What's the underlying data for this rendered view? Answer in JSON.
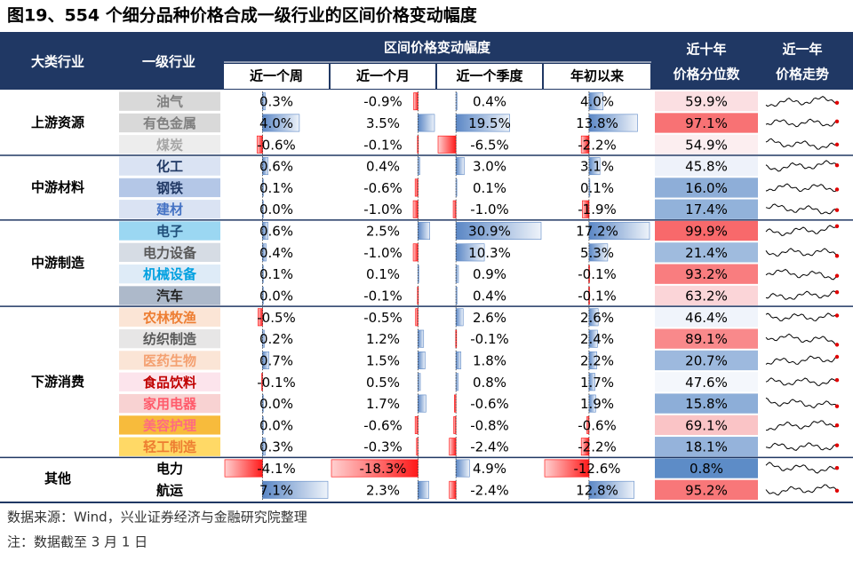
{
  "title": "图19、554 个细分品种价格合成一级行业的区间价格变动幅度",
  "header": {
    "group": "大类行业",
    "industry": "一级行业",
    "change": "区间价格变动幅度",
    "periods": [
      "近一个周",
      "近一个月",
      "近一个季度",
      "年初以来"
    ],
    "percentile": [
      "近十年",
      "价格分位数"
    ],
    "trend": [
      "近一年",
      "价格走势"
    ]
  },
  "groups": [
    {
      "name": "上游资源",
      "rows": [
        {
          "name": "油气",
          "bg": "#d9d9d9",
          "color": "#7f7f7f",
          "values": [
            "0.3%",
            "-0.9%",
            "0.4%",
            "4.0%",
            "59.9%"
          ]
        },
        {
          "name": "有色金属",
          "bg": "#d9d9d9",
          "color": "#7f7f7f",
          "values": [
            "4.0%",
            "3.5%",
            "19.5%",
            "13.8%",
            "97.1%"
          ]
        },
        {
          "name": "煤炭",
          "bg": "#ededed",
          "color": "#a6a6a6",
          "values": [
            "-0.6%",
            "-0.1%",
            "-6.5%",
            "-2.2%",
            "54.9%"
          ]
        }
      ]
    },
    {
      "name": "中游材料",
      "rows": [
        {
          "name": "化工",
          "bg": "#dae3f3",
          "color": "#1f3864",
          "values": [
            "0.6%",
            "0.4%",
            "3.0%",
            "3.1%",
            "45.8%"
          ]
        },
        {
          "name": "钢铁",
          "bg": "#b4c7e7",
          "color": "#203864",
          "values": [
            "0.1%",
            "-0.6%",
            "0.1%",
            "0.1%",
            "16.0%"
          ]
        },
        {
          "name": "建材",
          "bg": "#dae3f3",
          "color": "#4472c4",
          "values": [
            "0.0%",
            "-1.0%",
            "-1.0%",
            "-1.9%",
            "17.4%"
          ]
        }
      ]
    },
    {
      "name": "中游制造",
      "rows": [
        {
          "name": "电子",
          "bg": "#9bd7f2",
          "color": "#1f4e79",
          "values": [
            "0.6%",
            "2.5%",
            "30.9%",
            "17.2%",
            "99.9%"
          ]
        },
        {
          "name": "电力设备",
          "bg": "#d6dce4",
          "color": "#595959",
          "values": [
            "0.4%",
            "-1.0%",
            "10.3%",
            "5.3%",
            "21.4%"
          ]
        },
        {
          "name": "机械设备",
          "bg": "#deebf7",
          "color": "#00a0e0",
          "values": [
            "0.1%",
            "0.1%",
            "0.9%",
            "-0.1%",
            "93.2%"
          ]
        },
        {
          "name": "汽车",
          "bg": "#adb9ca",
          "color": "#222222",
          "values": [
            "0.0%",
            "-0.1%",
            "0.4%",
            "-0.1%",
            "63.2%"
          ]
        }
      ]
    },
    {
      "name": "下游消费",
      "rows": [
        {
          "name": "农林牧渔",
          "bg": "#fbe5d6",
          "color": "#ed7d31",
          "values": [
            "-0.5%",
            "-0.5%",
            "2.6%",
            "2.6%",
            "46.4%"
          ]
        },
        {
          "name": "纺织制造",
          "bg": "#e7e6e6",
          "color": "#595959",
          "values": [
            "0.2%",
            "1.2%",
            "-0.1%",
            "2.4%",
            "89.1%"
          ]
        },
        {
          "name": "医药生物",
          "bg": "#fbe5d6",
          "color": "#f4a070",
          "values": [
            "0.7%",
            "1.5%",
            "1.8%",
            "2.2%",
            "20.7%"
          ]
        },
        {
          "name": "食品饮料",
          "bg": "#fce4ec",
          "color": "#c00000",
          "values": [
            "-0.1%",
            "0.5%",
            "0.8%",
            "1.7%",
            "47.6%"
          ]
        },
        {
          "name": "家用电器",
          "bg": "#f8d2d2",
          "color": "#ff5b6b",
          "values": [
            "0.0%",
            "1.7%",
            "-0.6%",
            "1.9%",
            "15.8%"
          ]
        },
        {
          "name": "美容护理",
          "bg": "#f7bb3c",
          "color": "#ff6b80",
          "values": [
            "0.0%",
            "-0.6%",
            "-0.8%",
            "-0.6%",
            "69.1%"
          ]
        },
        {
          "name": "轻工制造",
          "bg": "#ffd966",
          "color": "#ed7d31",
          "values": [
            "0.3%",
            "-0.3%",
            "-2.4%",
            "-2.2%",
            "18.1%"
          ]
        }
      ]
    },
    {
      "name": "其他",
      "rows": [
        {
          "name": "电力",
          "bg": "#ffffff",
          "color": "#000000",
          "values": [
            "-4.1%",
            "-18.3%",
            "4.9%",
            "-12.6%",
            "0.8%"
          ]
        },
        {
          "name": "航运",
          "bg": "#ffffff",
          "color": "#000000",
          "values": [
            "7.1%",
            "2.3%",
            "-2.4%",
            "12.8%",
            "95.2%"
          ]
        }
      ]
    }
  ],
  "footer": [
    "数据来源：Wind，兴业证券经济与金融研究院整理",
    "注：数据截至 3 月 1 日"
  ]
}
